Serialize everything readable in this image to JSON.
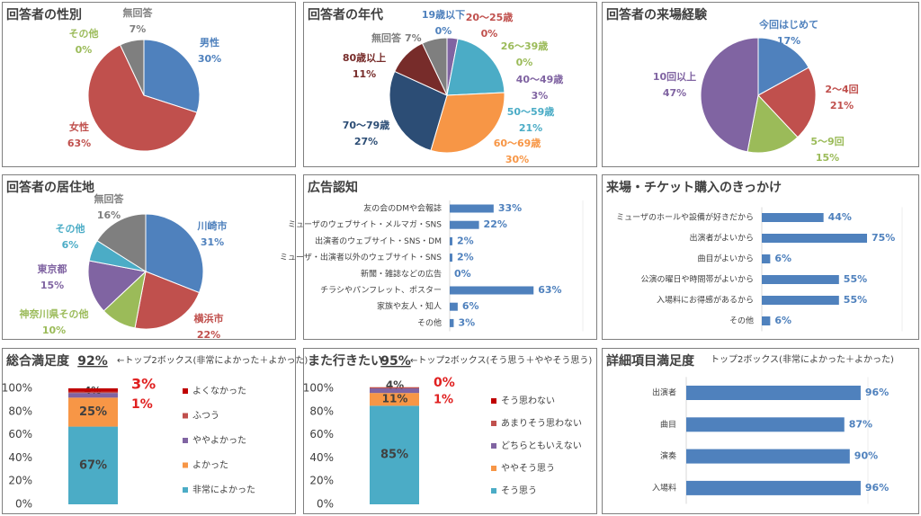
{
  "chart_data": [
    {
      "type": "pie",
      "title": "回答者の性別",
      "categories": [
        "男性",
        "女性",
        "その他",
        "無回答"
      ],
      "values": [
        30,
        63,
        0,
        7
      ],
      "value_labels": [
        "30%",
        "63%",
        "0%",
        "7%"
      ],
      "colors": [
        "#4f81bd",
        "#c0504d",
        "#9bbb59",
        "#7f7f7f"
      ]
    },
    {
      "type": "pie",
      "title": "回答者の年代",
      "categories": [
        "19歳以下",
        "20〜25歳",
        "26〜39歳",
        "40〜49歳",
        "50〜59歳",
        "60〜69歳",
        "70〜79歳",
        "80歳以上",
        "無回答"
      ],
      "values": [
        0,
        0,
        0,
        3,
        21,
        30,
        27,
        11,
        7
      ],
      "value_labels": [
        "0%",
        "0%",
        "0%",
        "3%",
        "21%",
        "30%",
        "27%",
        "11%",
        "7%"
      ],
      "colors": [
        "#4f81bd",
        "#c0504d",
        "#9bbb59",
        "#8064a2",
        "#4bacc6",
        "#f79646",
        "#2c4d75",
        "#772c2a",
        "#7f7f7f"
      ]
    },
    {
      "type": "pie",
      "title": "回答者の来場経験",
      "categories": [
        "今回はじめて",
        "2〜4回",
        "5〜9回",
        "10回以上"
      ],
      "values": [
        17,
        21,
        15,
        47
      ],
      "value_labels": [
        "17%",
        "21%",
        "15%",
        "47%"
      ],
      "colors": [
        "#4f81bd",
        "#c0504d",
        "#9bbb59",
        "#8064a2"
      ]
    },
    {
      "type": "pie",
      "title": "回答者の居住地",
      "categories": [
        "川崎市",
        "横浜市",
        "神奈川県その他",
        "東京都",
        "その他",
        "無回答"
      ],
      "values": [
        31,
        22,
        10,
        15,
        6,
        16
      ],
      "value_labels": [
        "31%",
        "22%",
        "10%",
        "15%",
        "6%",
        "16%"
      ],
      "colors": [
        "#4f81bd",
        "#c0504d",
        "#9bbb59",
        "#8064a2",
        "#4bacc6",
        "#7f7f7f"
      ]
    },
    {
      "type": "hbar",
      "title": "広告認知",
      "categories": [
        "友の会のDMや会報誌",
        "ミューザのウェブサイト・メルマガ・SNS",
        "出演者のウェブサイト・SNS・DM",
        "ミューザ・出演者以外のウェブサイト・SNS",
        "新聞・雑誌などの広告",
        "チラシやパンフレット、ポスター",
        "家族や友人・知人",
        "その他"
      ],
      "values": [
        33,
        22,
        2,
        2,
        0,
        63,
        6,
        3
      ],
      "value_labels": [
        "33%",
        "22%",
        "2%",
        "2%",
        "0%",
        "63%",
        "6%",
        "3%"
      ],
      "color": "#4f81bd",
      "xlim": [
        0,
        100
      ]
    },
    {
      "type": "hbar",
      "title": "来場・チケット購入のきっかけ",
      "categories": [
        "ミューザのホールや設備が好きだから",
        "出演者がよいから",
        "曲目がよいから",
        "公演の曜日や時間帯がよいから",
        "入場料にお得感があるから",
        "その他"
      ],
      "values": [
        44,
        75,
        6,
        55,
        55,
        6
      ],
      "value_labels": [
        "44%",
        "75%",
        "6%",
        "55%",
        "55%",
        "6%"
      ],
      "color": "#4f81bd",
      "xlim": [
        0,
        100
      ]
    },
    {
      "type": "stacked_bar",
      "title": "総合満足度",
      "annotation": "92%",
      "note": "←トップ2ボックス(非常によかった＋よかった)",
      "ylim": [
        0,
        100
      ],
      "yticks": [
        {
          "value": 0,
          "label": "0%"
        },
        {
          "value": 20,
          "label": "20%"
        },
        {
          "value": 40,
          "label": "40%"
        },
        {
          "value": 60,
          "label": "60%"
        },
        {
          "value": 80,
          "label": "80%"
        },
        {
          "value": 100,
          "label": "100%"
        }
      ],
      "series": [
        {
          "name": "非常によかった",
          "color": "#4bacc6",
          "values": [
            67
          ],
          "value_labels": [
            "67%"
          ]
        },
        {
          "name": "よかった",
          "color": "#f79646",
          "values": [
            25
          ],
          "value_labels": [
            "25%"
          ]
        },
        {
          "name": "ややよかった",
          "color": "#8064a2",
          "values": [
            4
          ],
          "value_labels": [
            "4%"
          ]
        },
        {
          "name": "ふつう",
          "color": "#c0504d",
          "values": [
            1
          ],
          "value_labels": [
            "1%"
          ]
        },
        {
          "name": "よくなかった",
          "color": "#c00000",
          "values": [
            3
          ],
          "value_labels": [
            "3%"
          ]
        }
      ]
    },
    {
      "type": "stacked_bar",
      "title": "また行きたい",
      "annotation": "95%",
      "note": "←トップ2ボックス(そう思う＋ややそう思う)",
      "ylim": [
        0,
        100
      ],
      "yticks": [
        {
          "value": 0,
          "label": "0%"
        },
        {
          "value": 20,
          "label": "20%"
        },
        {
          "value": 40,
          "label": "40%"
        },
        {
          "value": 60,
          "label": "60%"
        },
        {
          "value": 80,
          "label": "80%"
        },
        {
          "value": 100,
          "label": "100%"
        }
      ],
      "series": [
        {
          "name": "そう思う",
          "color": "#4bacc6",
          "values": [
            85
          ],
          "value_labels": [
            "85%"
          ]
        },
        {
          "name": "ややそう思う",
          "color": "#f79646",
          "values": [
            11
          ],
          "value_labels": [
            "11%"
          ]
        },
        {
          "name": "どちらともいえない",
          "color": "#8064a2",
          "values": [
            4
          ],
          "value_labels": [
            "4%"
          ]
        },
        {
          "name": "あまりそう思わない",
          "color": "#c0504d",
          "values": [
            1
          ],
          "value_labels": [
            "1%"
          ]
        },
        {
          "name": "そう思わない",
          "color": "#c00000",
          "values": [
            0
          ],
          "value_labels": [
            "0%"
          ]
        }
      ]
    },
    {
      "type": "hbar",
      "title": "詳細項目満足度",
      "subtitle": "トップ2ボックス(非常によかった＋よかった)",
      "categories": [
        "出演者",
        "曲目",
        "演奏",
        "入場料"
      ],
      "values": [
        96,
        87,
        90,
        96
      ],
      "value_labels": [
        "96%",
        "87%",
        "90%",
        "96%"
      ],
      "color": "#4f81bd",
      "xlim": [
        0,
        100
      ]
    }
  ]
}
